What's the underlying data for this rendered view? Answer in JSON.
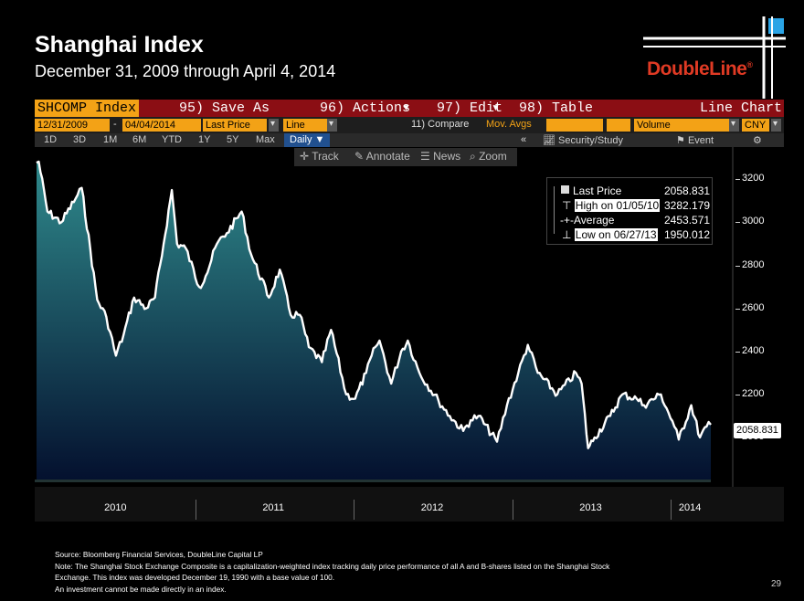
{
  "header": {
    "title": "Shanghai Index",
    "subtitle": "December 31, 2009 through April 4, 2014",
    "logo_text": "DoubleLine",
    "logo_registered": "®"
  },
  "toolbar": {
    "ticker": "SHCOMP Index",
    "save_as": "95) Save As",
    "actions": "96) Actions",
    "edit": "97) Edit",
    "table": "98) Table",
    "chart_type_label": "Line Chart",
    "start_date": "12/31/2009",
    "dash": "-",
    "end_date": "04/04/2014",
    "field": "Last Price",
    "style": "Line",
    "compare": "11) Compare",
    "mov_avgs": "Mov. Avgs",
    "volume": "Volume",
    "currency": "CNY",
    "periods": [
      "1D",
      "3D",
      "1M",
      "6M",
      "YTD",
      "1Y",
      "5Y",
      "Max"
    ],
    "frequency": "Daily ▼",
    "security_study": "Security/Study",
    "event": "Event",
    "track": "Track",
    "annotate": "Annotate",
    "news": "News",
    "zoom": "Zoom"
  },
  "legend": {
    "rows": [
      {
        "label": "Last Price",
        "value": "2058.831"
      },
      {
        "label": "High on 01/05/10",
        "value": "3282.179"
      },
      {
        "label": "Average",
        "value": "2453.571"
      },
      {
        "label": "Low on 06/27/13",
        "value": "1950.012"
      }
    ]
  },
  "last_price_tag": "2058.831",
  "notes": [
    "Source: Bloomberg Financial Services, DoubleLine Capital LP",
    "Note: The Shanghai Stock Exchange Composite is a capitalization-weighted index tracking daily price performance of all A and B-shares listed on the Shanghai Stock",
    "Exchange. This index was developed December 19, 1990 with a base value of 100.",
    "An investment cannot be made directly in an index."
  ],
  "page_number": "29",
  "colors": {
    "accent_red": "#8b0e14",
    "field_orange": "#f3a216",
    "logo_red": "#e03a24",
    "area_top": "#2f8a8c",
    "area_bottom": "#04102e"
  },
  "chart_data": {
    "type": "area",
    "title": "",
    "xlabel": "",
    "ylabel": "",
    "ylim": [
      1800,
      3350
    ],
    "yticks": [
      2000,
      2200,
      2400,
      2600,
      2800,
      3000,
      3200
    ],
    "x_range": [
      "2009-12-31",
      "2014-04-04"
    ],
    "x_year_labels": [
      "2010",
      "2011",
      "2012",
      "2013",
      "2014"
    ],
    "grid": false,
    "legend_position": "top-right",
    "series": [
      {
        "x": [
          "2009-12-31",
          "2010-01-05",
          "2010-01-25",
          "2010-02-26",
          "2010-03-31",
          "2010-04-14",
          "2010-05-20",
          "2010-06-10",
          "2010-07-02",
          "2010-07-20",
          "2010-08-13",
          "2010-09-10",
          "2010-09-30",
          "2010-10-20",
          "2010-11-08",
          "2010-11-20",
          "2010-12-10",
          "2011-01-10",
          "2011-01-25",
          "2011-02-20",
          "2011-03-15",
          "2011-04-18",
          "2011-05-10",
          "2011-06-20",
          "2011-07-15",
          "2011-08-09",
          "2011-08-30",
          "2011-09-20",
          "2011-10-20",
          "2011-11-10",
          "2011-12-15",
          "2012-01-05",
          "2012-01-30",
          "2012-02-20",
          "2012-03-01",
          "2012-03-28",
          "2012-04-20",
          "2012-05-05",
          "2012-06-01",
          "2012-07-15",
          "2012-08-10",
          "2012-09-10",
          "2012-09-27",
          "2012-10-15",
          "2012-11-27",
          "2012-12-20",
          "2013-01-15",
          "2013-02-06",
          "2013-03-01",
          "2013-04-15",
          "2013-05-28",
          "2013-06-10",
          "2013-06-25",
          "2013-07-10",
          "2013-08-15",
          "2013-09-12",
          "2013-10-15",
          "2013-11-01",
          "2013-12-10",
          "2014-01-10",
          "2014-01-20",
          "2014-02-18",
          "2014-03-10",
          "2014-03-25",
          "2014-04-04"
        ],
        "y": [
          3277,
          3282,
          3050,
          3000,
          3110,
          3160,
          2640,
          2560,
          2380,
          2480,
          2650,
          2600,
          2650,
          2900,
          3150,
          2900,
          2880,
          2700,
          2750,
          2900,
          2950,
          3050,
          2850,
          2650,
          2780,
          2570,
          2570,
          2420,
          2350,
          2500,
          2200,
          2180,
          2300,
          2420,
          2450,
          2250,
          2400,
          2450,
          2300,
          2170,
          2100,
          2030,
          2080,
          2100,
          1980,
          2150,
          2300,
          2430,
          2300,
          2200,
          2300,
          2250,
          1950,
          2000,
          2100,
          2200,
          2180,
          2150,
          2200,
          2050,
          1990,
          2150,
          2000,
          2050,
          2058.831
        ]
      }
    ]
  }
}
